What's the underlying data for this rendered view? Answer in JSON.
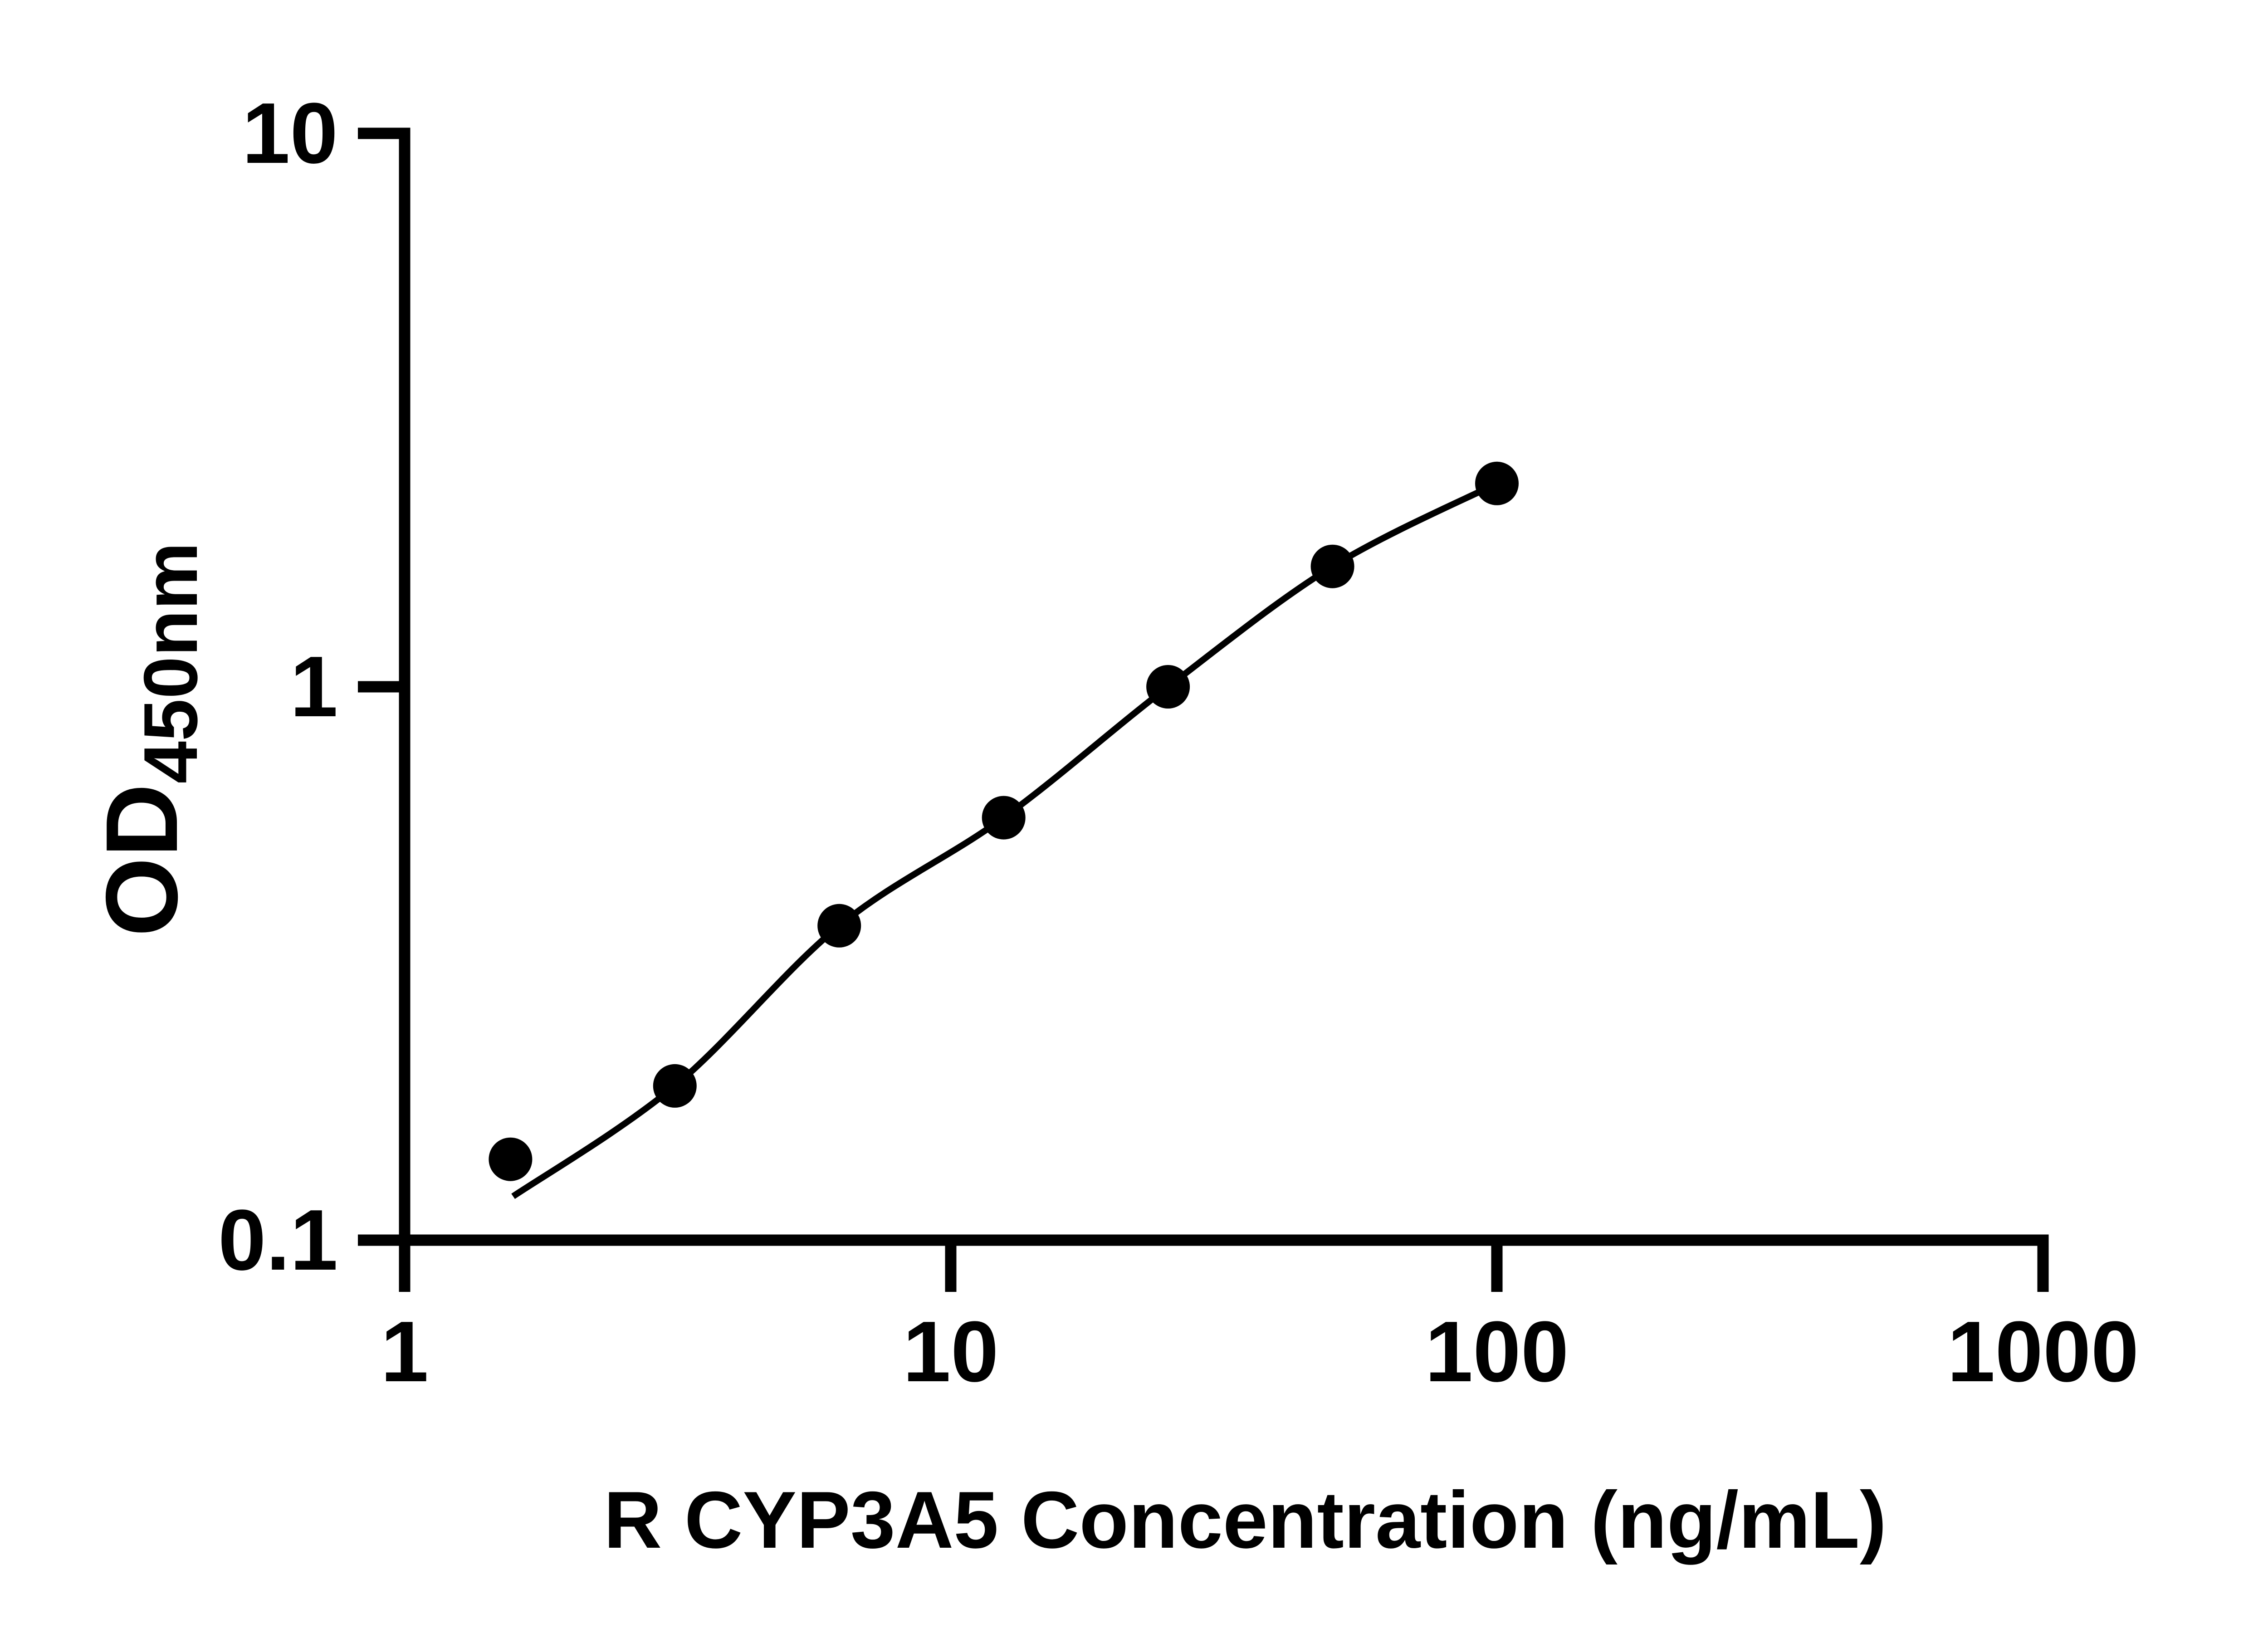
{
  "chart_data": {
    "type": "scatter",
    "title": "",
    "x_axis": {
      "title": "R CYP3A5 Concentration (ng/mL)",
      "scale": "log10",
      "range": [
        1,
        1000
      ],
      "ticks": [
        {
          "value": 1,
          "label": "1"
        },
        {
          "value": 10,
          "label": "10"
        },
        {
          "value": 100,
          "label": "100"
        },
        {
          "value": 1000,
          "label": "1000"
        }
      ]
    },
    "y_axis": {
      "label_main": "OD",
      "label_sub": "450nm",
      "scale": "log10",
      "range": [
        0.1,
        10
      ],
      "ticks": [
        {
          "value": 0.1,
          "label": "0.1"
        },
        {
          "value": 1,
          "label": "1"
        },
        {
          "value": 10,
          "label": "10"
        }
      ]
    },
    "series": [
      {
        "name": "standard-curve-points",
        "marker": "filled-circle",
        "color": "#000000",
        "points": [
          {
            "x": 1.5625,
            "y": 0.14
          },
          {
            "x": 3.125,
            "y": 0.19
          },
          {
            "x": 6.25,
            "y": 0.37
          },
          {
            "x": 12.5,
            "y": 0.58
          },
          {
            "x": 25,
            "y": 1.0
          },
          {
            "x": 50,
            "y": 1.65
          },
          {
            "x": 100,
            "y": 2.33
          }
        ]
      }
    ],
    "fit_curve": [
      {
        "x": 1.58,
        "y": 0.12
      },
      {
        "x": 3.125,
        "y": 0.19
      },
      {
        "x": 6.25,
        "y": 0.37
      },
      {
        "x": 12.5,
        "y": 0.58
      },
      {
        "x": 25,
        "y": 1.0
      },
      {
        "x": 50,
        "y": 1.65
      },
      {
        "x": 100,
        "y": 2.33
      }
    ],
    "grid": false,
    "legend": false
  },
  "colors": {
    "foreground": "#000000",
    "background": "#ffffff"
  }
}
